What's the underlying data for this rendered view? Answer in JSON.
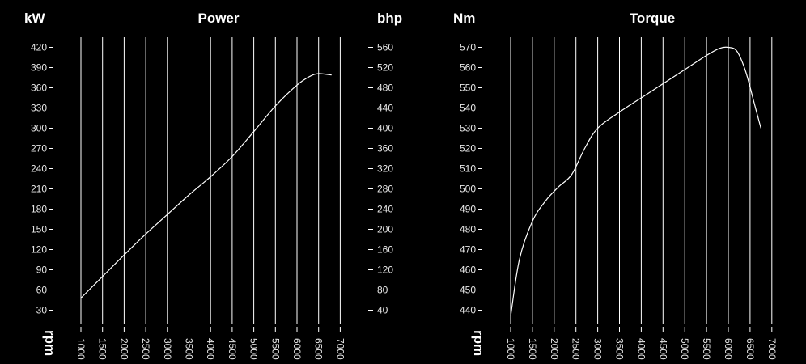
{
  "theme": {
    "background": "#000000",
    "foreground": "#ffffff",
    "grid": "#ffffff"
  },
  "chart_data": [
    {
      "type": "line",
      "title": "Power",
      "ylabel": "kW",
      "y2label": "bhp",
      "xlabel": "rpm",
      "ylim": [
        15,
        435
      ],
      "y_ticks": [
        "420",
        "390",
        "360",
        "330",
        "300",
        "270",
        "240",
        "210",
        "180",
        "150",
        "120",
        "90",
        "60",
        "30"
      ],
      "y2_ticks": [
        "560",
        "520",
        "480",
        "440",
        "400",
        "360",
        "320",
        "280",
        "240",
        "200",
        "160",
        "120",
        "80",
        "40"
      ],
      "x_ticks": [
        "1000",
        "1500",
        "2000",
        "2500",
        "3000",
        "3500",
        "4000",
        "4500",
        "5000",
        "5500",
        "6000",
        "6500",
        "7000"
      ],
      "xlim": [
        1000,
        7000
      ],
      "grid": "vertical",
      "series": [
        {
          "x": [
            1000,
            1500,
            2000,
            2500,
            3000,
            3500,
            4000,
            4500,
            5000,
            5500,
            6000,
            6300,
            6500,
            6800
          ],
          "values": [
            48,
            80,
            112,
            143,
            172,
            201,
            228,
            258,
            295,
            333,
            364,
            377,
            381,
            379
          ]
        }
      ]
    },
    {
      "type": "line",
      "title": "Torque",
      "ylabel": "Nm",
      "xlabel": "rpm",
      "ylim": [
        434,
        574
      ],
      "y_ticks": [
        "570",
        "560",
        "550",
        "540",
        "530",
        "520",
        "510",
        "500",
        "490",
        "480",
        "470",
        "460",
        "450",
        "440"
      ],
      "x_ticks": [
        "1000",
        "1500",
        "2000",
        "2500",
        "3000",
        "3500",
        "4000",
        "4500",
        "5000",
        "5500",
        "6000",
        "6500",
        "7000"
      ],
      "xlim": [
        1000,
        7000
      ],
      "grid": "vertical",
      "series": [
        {
          "x": [
            1000,
            1200,
            1500,
            1800,
            2100,
            2400,
            2700,
            3000,
            3500,
            4000,
            4500,
            5000,
            5500,
            5800,
            6000,
            6200,
            6400,
            6600,
            6750
          ],
          "values": [
            437,
            465,
            484,
            494,
            501,
            507,
            520,
            530,
            538,
            545,
            552,
            559,
            566,
            569.5,
            570,
            568,
            558,
            542,
            530
          ]
        }
      ]
    }
  ]
}
